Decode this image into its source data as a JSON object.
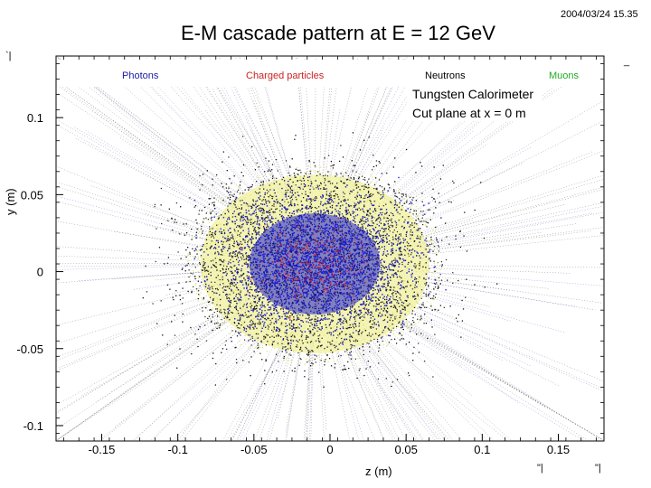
{
  "header": {
    "timestamp": "2004/03/24   15.35"
  },
  "stray_marks": {
    "left": "`|",
    "right": "_",
    "bottom_a": "\"|",
    "bottom_b": "\"|"
  },
  "chart_data": {
    "type": "scatter",
    "title": "E-M cascade pattern at E = 12 GeV",
    "xlabel": "z (m)",
    "ylabel": "y (m)",
    "xlim": [
      -0.18,
      0.18
    ],
    "ylim": [
      -0.11,
      0.14
    ],
    "x_ticks": [
      -0.15,
      -0.1,
      -0.05,
      0,
      0.05,
      0.1,
      0.15
    ],
    "x_tick_labels": [
      "-0.15",
      "-0.1",
      "-0.05",
      "0",
      "0.05",
      "0.1",
      "0.15"
    ],
    "y_ticks": [
      0.1,
      0.05,
      0,
      -0.05,
      -0.1
    ],
    "y_tick_labels": [
      "0.1",
      "0.05",
      "0",
      "-0.05",
      "-0.1"
    ],
    "legend": [
      {
        "name": "Photons",
        "color": "#1a1aa6"
      },
      {
        "name": "Charged particles",
        "color": "#cc2222"
      },
      {
        "name": "Neutrons",
        "color": "#000000"
      },
      {
        "name": "Muons",
        "color": "#22aa22"
      }
    ],
    "annotations": [
      "Tungsten Calorimeter",
      "Cut plane at x = 0 m"
    ],
    "shower": {
      "center": [
        -0.01,
        0.005
      ],
      "core_radius": [
        0.055,
        0.04
      ],
      "halo_radius": [
        0.075,
        0.058
      ],
      "halo_color": "#f2f2a8"
    }
  }
}
